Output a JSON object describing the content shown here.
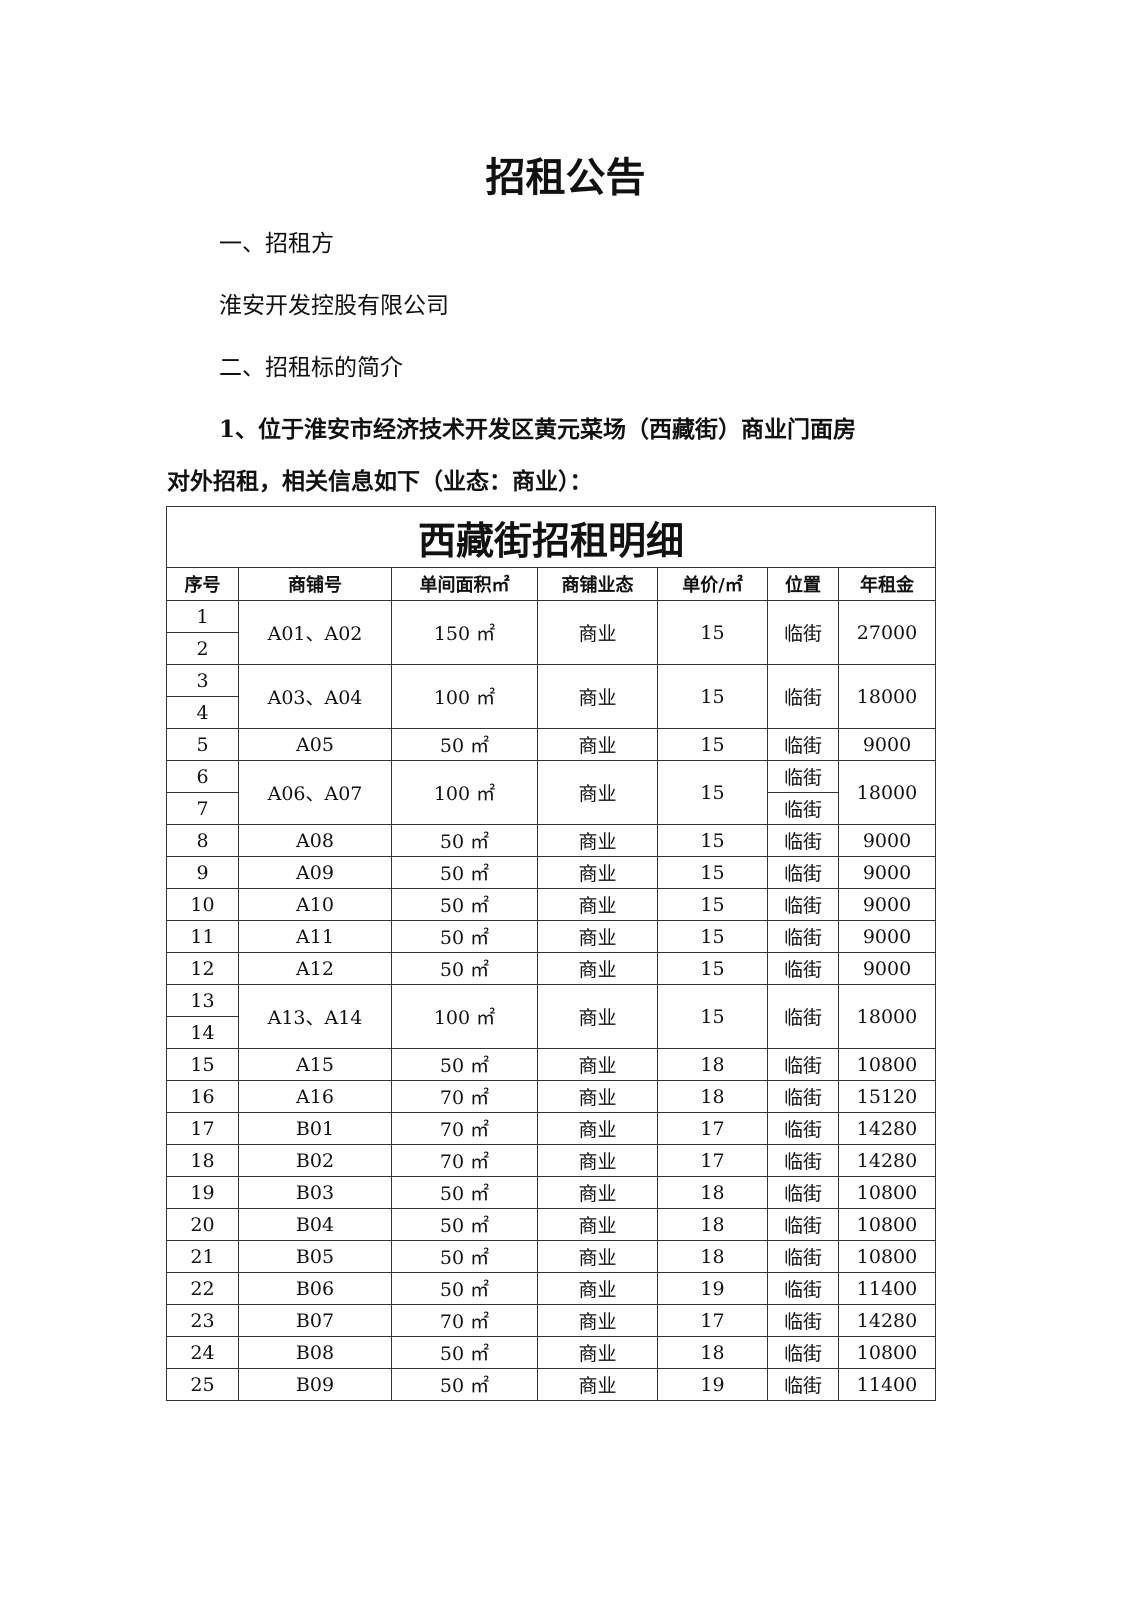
{
  "title": "招租公告",
  "section1": {
    "heading": "一、招租方",
    "body": "淮安开发控股有限公司"
  },
  "section2": {
    "heading": "二、招租标的简介",
    "item1_line1": "1、位于淮安市经济技术开发区黄元菜场（西藏街）商业门面房",
    "item1_line2": "对外招租，相关信息如下（业态：商业）："
  },
  "table": {
    "title": "西藏街招租明细",
    "headers": [
      "序号",
      "商铺号",
      "单间面积㎡",
      "商铺业态",
      "单价/㎡",
      "位置",
      "年租金"
    ],
    "groups": [
      {
        "seq": [
          "1",
          "2"
        ],
        "shop": "A01、A02",
        "area": "150 ㎡",
        "type": "商业",
        "price": "15",
        "location": [
          "临街"
        ],
        "rent": "27000"
      },
      {
        "seq": [
          "3",
          "4"
        ],
        "shop": "A03、A04",
        "area": "100 ㎡",
        "type": "商业",
        "price": "15",
        "location": [
          "临街"
        ],
        "rent": "18000"
      },
      {
        "seq": [
          "5"
        ],
        "shop": "A05",
        "area": "50 ㎡",
        "type": "商业",
        "price": "15",
        "location": [
          "临街"
        ],
        "rent": "9000"
      },
      {
        "seq": [
          "6",
          "7"
        ],
        "shop": "A06、A07",
        "area": "100 ㎡",
        "type": "商业",
        "price": "15",
        "location": [
          "临街",
          "临街"
        ],
        "rent": "18000"
      },
      {
        "seq": [
          "8"
        ],
        "shop": "A08",
        "area": "50 ㎡",
        "type": "商业",
        "price": "15",
        "location": [
          "临街"
        ],
        "rent": "9000"
      },
      {
        "seq": [
          "9"
        ],
        "shop": "A09",
        "area": "50 ㎡",
        "type": "商业",
        "price": "15",
        "location": [
          "临街"
        ],
        "rent": "9000"
      },
      {
        "seq": [
          "10"
        ],
        "shop": "A10",
        "area": "50 ㎡",
        "type": "商业",
        "price": "15",
        "location": [
          "临街"
        ],
        "rent": "9000"
      },
      {
        "seq": [
          "11"
        ],
        "shop": "A11",
        "area": "50 ㎡",
        "type": "商业",
        "price": "15",
        "location": [
          "临街"
        ],
        "rent": "9000"
      },
      {
        "seq": [
          "12"
        ],
        "shop": "A12",
        "area": "50 ㎡",
        "type": "商业",
        "price": "15",
        "location": [
          "临街"
        ],
        "rent": "9000"
      },
      {
        "seq": [
          "13",
          "14"
        ],
        "shop": "A13、A14",
        "area": "100 ㎡",
        "type": "商业",
        "price": "15",
        "location": [
          "临街"
        ],
        "rent": "18000"
      },
      {
        "seq": [
          "15"
        ],
        "shop": "A15",
        "area": "50 ㎡",
        "type": "商业",
        "price": "18",
        "location": [
          "临街"
        ],
        "rent": "10800"
      },
      {
        "seq": [
          "16"
        ],
        "shop": "A16",
        "area": "70 ㎡",
        "type": "商业",
        "price": "18",
        "location": [
          "临街"
        ],
        "rent": "15120"
      },
      {
        "seq": [
          "17"
        ],
        "shop": "B01",
        "area": "70 ㎡",
        "type": "商业",
        "price": "17",
        "location": [
          "临街"
        ],
        "rent": "14280"
      },
      {
        "seq": [
          "18"
        ],
        "shop": "B02",
        "area": "70 ㎡",
        "type": "商业",
        "price": "17",
        "location": [
          "临街"
        ],
        "rent": "14280"
      },
      {
        "seq": [
          "19"
        ],
        "shop": "B03",
        "area": "50 ㎡",
        "type": "商业",
        "price": "18",
        "location": [
          "临街"
        ],
        "rent": "10800"
      },
      {
        "seq": [
          "20"
        ],
        "shop": "B04",
        "area": "50 ㎡",
        "type": "商业",
        "price": "18",
        "location": [
          "临街"
        ],
        "rent": "10800"
      },
      {
        "seq": [
          "21"
        ],
        "shop": "B05",
        "area": "50 ㎡",
        "type": "商业",
        "price": "18",
        "location": [
          "临街"
        ],
        "rent": "10800"
      },
      {
        "seq": [
          "22"
        ],
        "shop": "B06",
        "area": "50 ㎡",
        "type": "商业",
        "price": "19",
        "location": [
          "临街"
        ],
        "rent": "11400"
      },
      {
        "seq": [
          "23"
        ],
        "shop": "B07",
        "area": "70 ㎡",
        "type": "商业",
        "price": "17",
        "location": [
          "临街"
        ],
        "rent": "14280"
      },
      {
        "seq": [
          "24"
        ],
        "shop": "B08",
        "area": "50 ㎡",
        "type": "商业",
        "price": "18",
        "location": [
          "临街"
        ],
        "rent": "10800"
      },
      {
        "seq": [
          "25"
        ],
        "shop": "B09",
        "area": "50 ㎡",
        "type": "商业",
        "price": "19",
        "location": [
          "临街"
        ],
        "rent": "11400"
      }
    ]
  }
}
